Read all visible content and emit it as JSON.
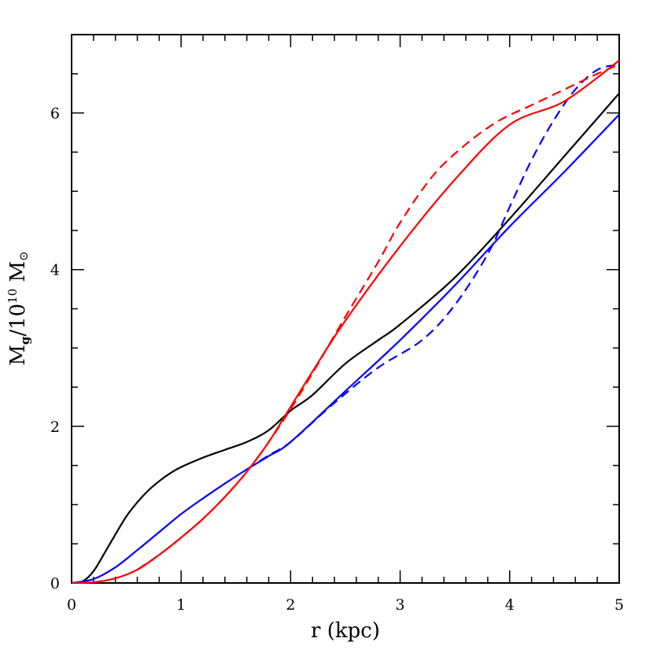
{
  "chart_data": {
    "type": "line",
    "xlabel": "r (kpc)",
    "ylabel": {
      "base": "M",
      "sub": "g",
      "middle": "/10",
      "sup": "10",
      "tail": " M",
      "sun_symbol": "⊙"
    },
    "xlim": [
      0,
      5
    ],
    "ylim": [
      0,
      7
    ],
    "x_ticks": [
      "0",
      "1",
      "2",
      "3",
      "4",
      "5"
    ],
    "y_ticks": [
      "0",
      "2",
      "4",
      "6"
    ],
    "grid": false,
    "legend": "none",
    "series": [
      {
        "color": "#000000",
        "style": "solid",
        "x": [
          0,
          0.1,
          0.2,
          0.3,
          0.4,
          0.5,
          0.6,
          0.7,
          0.8,
          0.9,
          1.0,
          1.2,
          1.4,
          1.6,
          1.8,
          2.0,
          2.2,
          2.5,
          2.8,
          3.0,
          3.5,
          4.0,
          4.5,
          5.0
        ],
        "y": [
          0,
          0.02,
          0.15,
          0.38,
          0.62,
          0.85,
          1.03,
          1.18,
          1.3,
          1.4,
          1.48,
          1.6,
          1.7,
          1.8,
          1.95,
          2.2,
          2.4,
          2.8,
          3.1,
          3.3,
          3.9,
          4.65,
          5.45,
          6.25
        ]
      },
      {
        "color": "#0000ff",
        "style": "solid",
        "x": [
          0,
          0.2,
          0.4,
          0.6,
          0.8,
          1.0,
          1.2,
          1.4,
          1.6,
          1.8,
          2.0,
          2.5,
          3.0,
          3.5,
          4.0,
          4.5,
          5.0
        ],
        "y": [
          0,
          0.05,
          0.2,
          0.42,
          0.65,
          0.88,
          1.08,
          1.27,
          1.45,
          1.62,
          1.8,
          2.45,
          3.1,
          3.8,
          4.55,
          5.25,
          5.98
        ]
      },
      {
        "color": "#0000ff",
        "style": "dashed",
        "x": [
          1.6,
          1.8,
          2.0,
          2.4,
          2.8,
          3.2,
          3.5,
          3.8,
          4.0,
          4.2,
          4.4,
          4.6,
          4.8,
          5.0
        ],
        "y": [
          1.45,
          1.63,
          1.8,
          2.3,
          2.75,
          3.1,
          3.55,
          4.2,
          4.8,
          5.4,
          5.9,
          6.3,
          6.55,
          6.62
        ]
      },
      {
        "color": "#ff0000",
        "style": "solid",
        "x": [
          0,
          0.2,
          0.4,
          0.6,
          0.8,
          1.0,
          1.2,
          1.4,
          1.6,
          1.8,
          2.0,
          2.2,
          2.5,
          3.0,
          3.5,
          4.0,
          4.5,
          5.0
        ],
        "y": [
          0,
          0.01,
          0.06,
          0.17,
          0.36,
          0.58,
          0.82,
          1.1,
          1.42,
          1.8,
          2.25,
          2.7,
          3.35,
          4.3,
          5.15,
          5.85,
          6.15,
          6.67
        ]
      },
      {
        "color": "#ff0000",
        "style": "dashed",
        "x": [
          0.6,
          0.8,
          1.0,
          1.2,
          1.4,
          1.6,
          1.8,
          2.0,
          2.2,
          2.5,
          2.8,
          3.0,
          3.3,
          3.6,
          3.9,
          4.2,
          4.5,
          4.8,
          5.0
        ],
        "y": [
          0.17,
          0.36,
          0.58,
          0.82,
          1.1,
          1.42,
          1.8,
          2.22,
          2.68,
          3.4,
          4.1,
          4.6,
          5.2,
          5.6,
          5.9,
          6.1,
          6.3,
          6.5,
          6.62
        ]
      }
    ]
  }
}
